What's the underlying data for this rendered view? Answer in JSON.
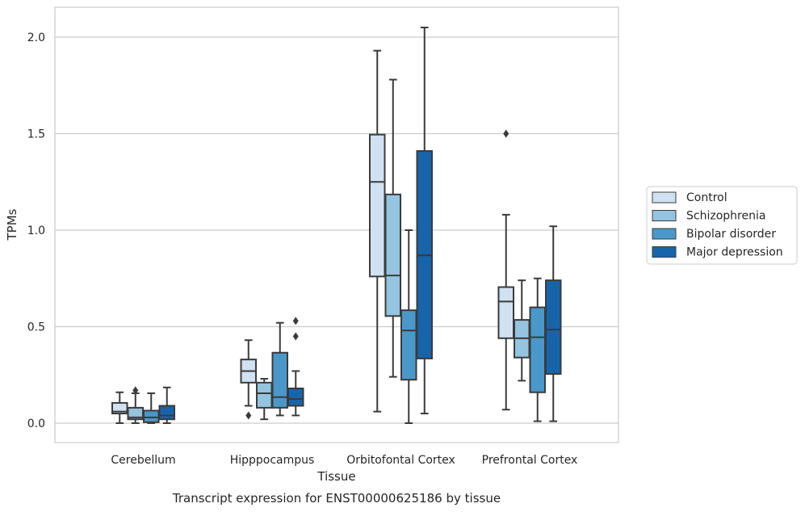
{
  "chart_data": {
    "type": "box",
    "title": "Transcript expression for ENST00000625186 by tissue",
    "xlabel": "Tissue",
    "ylabel": "TPMs",
    "ylim": [
      -0.1,
      2.15
    ],
    "yticks": [
      "0.0",
      "0.5",
      "1.0",
      "1.5",
      "2.0"
    ],
    "ytick_values": [
      0.0,
      0.5,
      1.0,
      1.5,
      2.0
    ],
    "grid": "horizontal",
    "legend_position": "right",
    "categories": [
      "Cerebellum",
      "Hipppocampus",
      "Orbitofontal Cortex",
      "Prefrontal Cortex"
    ],
    "series": [
      {
        "name": "Control",
        "color": "#d0e1f2",
        "boxes": [
          {
            "whislo": 0.0,
            "q1": 0.05,
            "med": 0.06,
            "q3": 0.105,
            "whishi": 0.16,
            "fliers": []
          },
          {
            "whislo": 0.09,
            "q1": 0.21,
            "med": 0.27,
            "q3": 0.33,
            "whishi": 0.43,
            "fliers": [
              0.04
            ]
          },
          {
            "whislo": 0.06,
            "q1": 0.76,
            "med": 1.25,
            "q3": 1.495,
            "whishi": 1.93,
            "fliers": []
          },
          {
            "whislo": 0.07,
            "q1": 0.44,
            "med": 0.63,
            "q3": 0.705,
            "whishi": 1.08,
            "fliers": [
              1.5
            ]
          }
        ]
      },
      {
        "name": "Schizophrenia",
        "color": "#94c4df",
        "boxes": [
          {
            "whislo": 0.0,
            "q1": 0.02,
            "med": 0.03,
            "q3": 0.08,
            "whishi": 0.155,
            "fliers": [
              0.17
            ]
          },
          {
            "whislo": 0.02,
            "q1": 0.08,
            "med": 0.155,
            "q3": 0.21,
            "whishi": 0.23,
            "fliers": []
          },
          {
            "whislo": 0.24,
            "q1": 0.555,
            "med": 0.765,
            "q3": 1.185,
            "whishi": 1.78,
            "fliers": []
          },
          {
            "whislo": 0.22,
            "q1": 0.34,
            "med": 0.44,
            "q3": 0.535,
            "whishi": 0.74,
            "fliers": []
          }
        ]
      },
      {
        "name": "Bipolar disorder",
        "color": "#4a98c9",
        "boxes": [
          {
            "whislo": 0.0,
            "q1": 0.005,
            "med": 0.03,
            "q3": 0.065,
            "whishi": 0.155,
            "fliers": []
          },
          {
            "whislo": 0.04,
            "q1": 0.08,
            "med": 0.135,
            "q3": 0.365,
            "whishi": 0.52,
            "fliers": []
          },
          {
            "whislo": 0.0,
            "q1": 0.225,
            "med": 0.48,
            "q3": 0.585,
            "whishi": 1.0,
            "fliers": []
          },
          {
            "whislo": 0.01,
            "q1": 0.16,
            "med": 0.445,
            "q3": 0.6,
            "whishi": 0.75,
            "fliers": []
          }
        ]
      },
      {
        "name": "Major depression",
        "color": "#1764ab",
        "boxes": [
          {
            "whislo": 0.0,
            "q1": 0.02,
            "med": 0.04,
            "q3": 0.09,
            "whishi": 0.185,
            "fliers": []
          },
          {
            "whislo": 0.04,
            "q1": 0.09,
            "med": 0.125,
            "q3": 0.18,
            "whishi": 0.27,
            "fliers": [
              0.45,
              0.53
            ]
          },
          {
            "whislo": 0.05,
            "q1": 0.335,
            "med": 0.87,
            "q3": 1.41,
            "whishi": 2.05,
            "fliers": []
          },
          {
            "whislo": 0.01,
            "q1": 0.255,
            "med": 0.485,
            "q3": 0.74,
            "whishi": 1.02,
            "fliers": []
          }
        ]
      }
    ]
  }
}
